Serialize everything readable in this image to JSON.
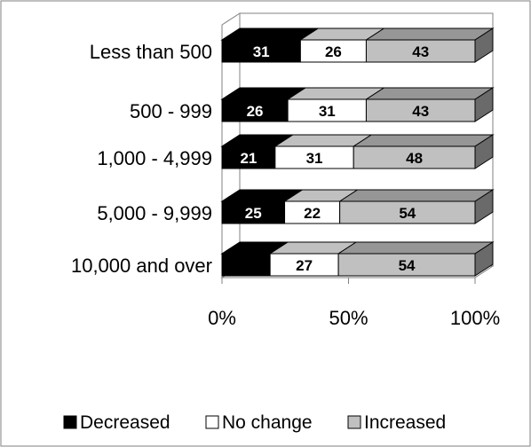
{
  "chart_data": {
    "type": "bar",
    "orientation": "horizontal",
    "stacked": "percent",
    "three_d": true,
    "categories": [
      "Less than 500",
      "500 - 999",
      "1,000 - 4,999",
      "5,000 - 9,999",
      "10,000 and over"
    ],
    "series": [
      {
        "name": "Decreased",
        "values": [
          31,
          26,
          21,
          25,
          19
        ],
        "labels": [
          "31",
          "26",
          "21",
          "25",
          ""
        ]
      },
      {
        "name": "No change",
        "values": [
          26,
          31,
          31,
          22,
          27
        ],
        "labels": [
          "26",
          "31",
          "31",
          "22",
          "27"
        ]
      },
      {
        "name": "Increased",
        "values": [
          43,
          43,
          48,
          54,
          54
        ],
        "labels": [
          "43",
          "43",
          "48",
          "54",
          "54"
        ]
      }
    ],
    "xlim": [
      0,
      100
    ],
    "xticks": [
      "0%",
      "50%",
      "100%"
    ],
    "legend_position": "bottom",
    "grid": false,
    "colors": {
      "Decreased": "#000000",
      "No change": "#ffffff",
      "Increased": "#c0c0c0",
      "increased_top": "#969696",
      "axis": "#808080",
      "border": "#808080"
    }
  }
}
